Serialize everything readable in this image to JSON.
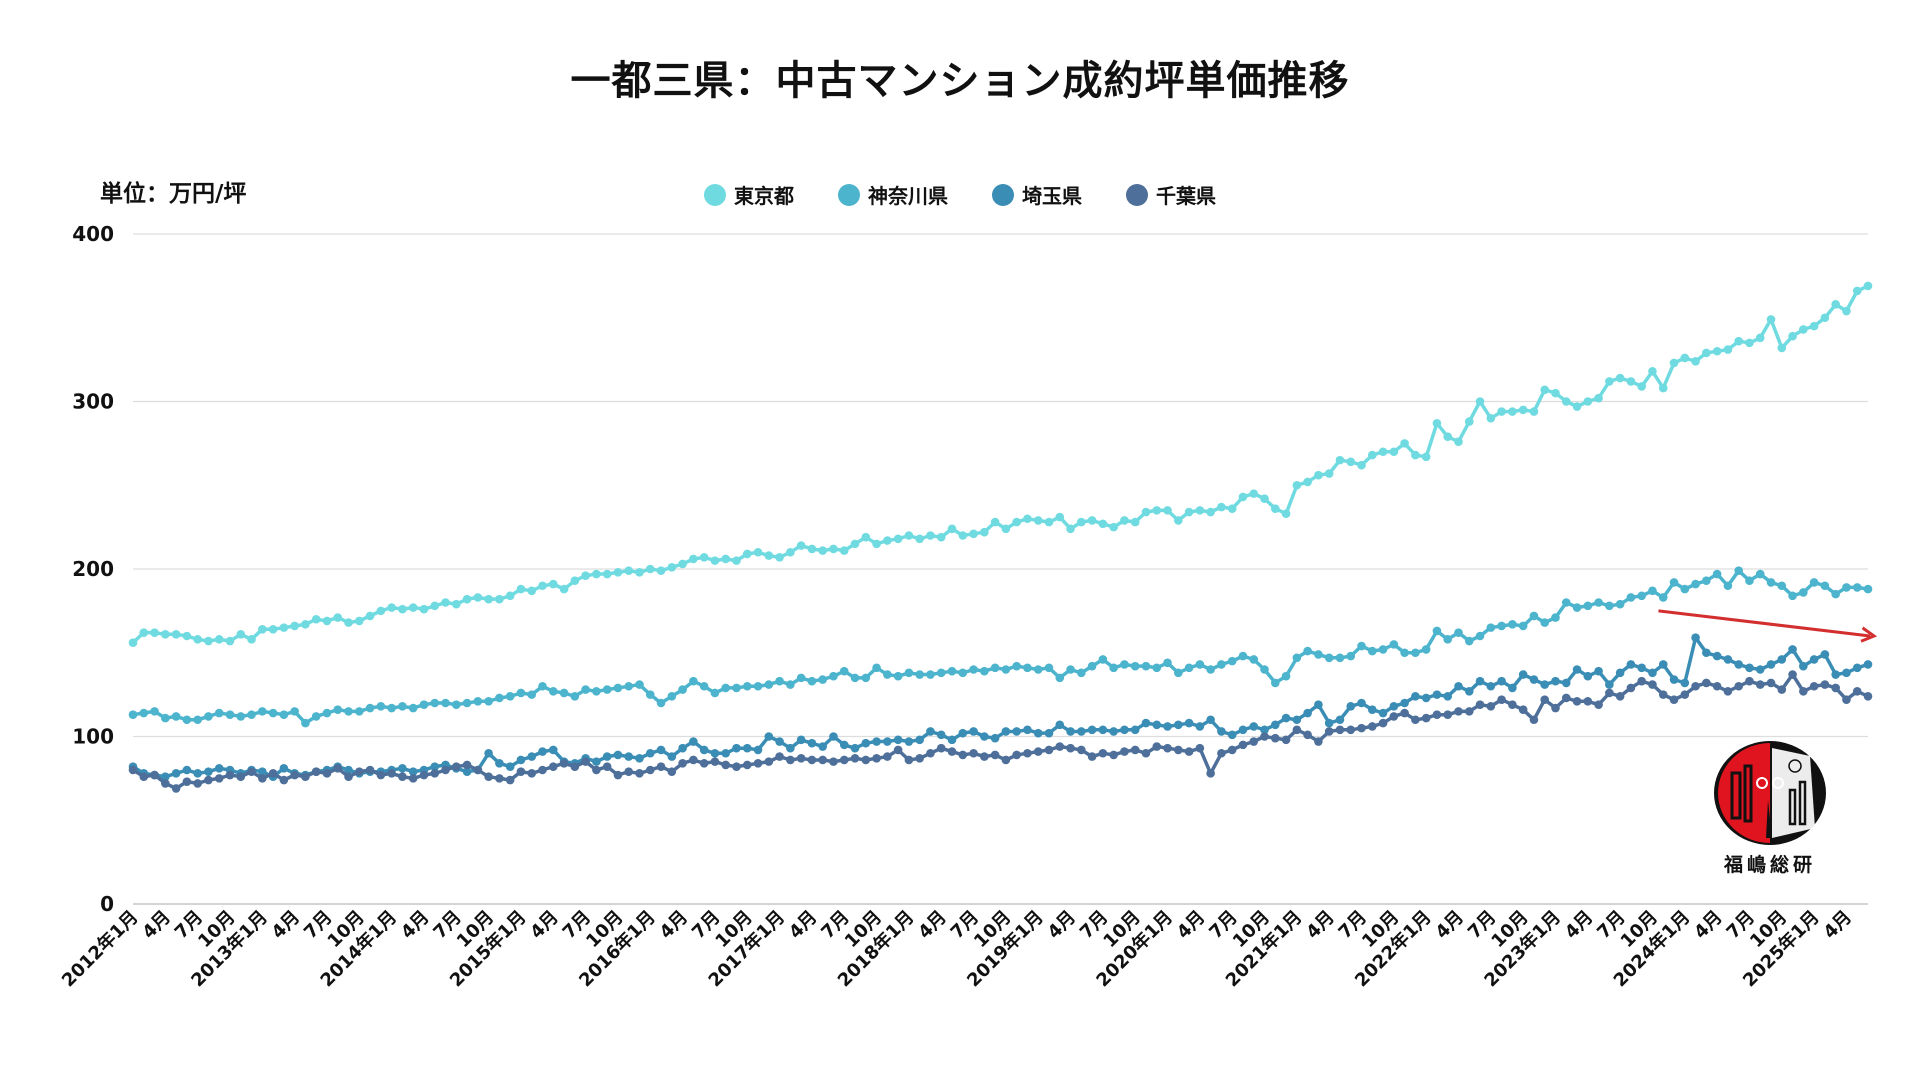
{
  "chart_data": {
    "type": "line",
    "title": "一都三県：中古マンション成約坪単価推移",
    "unit_label": "単位：万円/坪",
    "x_range": [
      "2012年1月",
      "2025年6月"
    ],
    "x_frequency": "monthly",
    "ylim": [
      0,
      400
    ],
    "y_ticks": [
      "0",
      "100",
      "200",
      "300",
      "400"
    ],
    "grid": "horizontal",
    "legend_position": "top",
    "x_tick_labels": [
      "2012年1月",
      "4月",
      "7月",
      "10月",
      "2013年1月",
      "4月",
      "7月",
      "10月",
      "2014年1月",
      "4月",
      "7月",
      "10月",
      "2015年1月",
      "4月",
      "7月",
      "10月",
      "2016年1月",
      "4月",
      "7月",
      "10月",
      "2017年1月",
      "4月",
      "7月",
      "10月",
      "2018年1月",
      "4月",
      "7月",
      "10月",
      "2019年1月",
      "4月",
      "7月",
      "10月",
      "2020年1月",
      "4月",
      "7月",
      "10月",
      "2021年1月",
      "4月",
      "7月",
      "10月",
      "2022年1月",
      "4月",
      "7月",
      "10月",
      "2023年1月",
      "4月",
      "7月",
      "10月",
      "2024年1月",
      "4月",
      "7月",
      "10月",
      "2025年1月",
      "4月"
    ],
    "series": [
      {
        "name": "東京都",
        "color": "#6fdbe0",
        "values": [
          156,
          162,
          162,
          161,
          161,
          160,
          158,
          157,
          158,
          157,
          161,
          158,
          164,
          164,
          165,
          166,
          167,
          170,
          169,
          171,
          168,
          169,
          172,
          175,
          177,
          176,
          177,
          176,
          178,
          180,
          179,
          182,
          183,
          182,
          182,
          184,
          188,
          187,
          190,
          191,
          188,
          193,
          196,
          197,
          197,
          198,
          199,
          198,
          200,
          199,
          201,
          203,
          206,
          207,
          205,
          206,
          205,
          209,
          210,
          208,
          207,
          210,
          214,
          212,
          211,
          212,
          211,
          215,
          219,
          215,
          217,
          218,
          220,
          218,
          220,
          219,
          224,
          220,
          221,
          222,
          228,
          224,
          228,
          230,
          229,
          228,
          231,
          224,
          228,
          229,
          227,
          225,
          229,
          228,
          234,
          235,
          235,
          229,
          234,
          235,
          234,
          237,
          236,
          243,
          245,
          242,
          236,
          233,
          250,
          252,
          256,
          257,
          265,
          264,
          262,
          268,
          270,
          270,
          275,
          268,
          267,
          287,
          279,
          276,
          288,
          300,
          290,
          294,
          294,
          295,
          294,
          307,
          305,
          300,
          297,
          300,
          302,
          312,
          314,
          312,
          309,
          318,
          308,
          323,
          326,
          324,
          329,
          330,
          331,
          336,
          335,
          338,
          349,
          332,
          339,
          343,
          345,
          350,
          358,
          354,
          366,
          369
        ]
      },
      {
        "name": "神奈川県",
        "color": "#4cb4cc",
        "values": [
          113,
          114,
          115,
          111,
          112,
          110,
          110,
          112,
          114,
          113,
          112,
          113,
          115,
          114,
          113,
          115,
          108,
          112,
          114,
          116,
          115,
          115,
          117,
          118,
          117,
          118,
          117,
          119,
          120,
          120,
          119,
          120,
          121,
          121,
          123,
          124,
          126,
          125,
          130,
          127,
          126,
          124,
          128,
          127,
          128,
          129,
          130,
          131,
          125,
          120,
          124,
          128,
          133,
          130,
          126,
          129,
          129,
          130,
          130,
          131,
          133,
          131,
          135,
          133,
          134,
          136,
          139,
          135,
          135,
          141,
          137,
          136,
          138,
          137,
          137,
          138,
          139,
          138,
          140,
          139,
          141,
          140,
          142,
          141,
          140,
          141,
          135,
          140,
          138,
          142,
          146,
          141,
          143,
          142,
          142,
          141,
          144,
          138,
          141,
          143,
          140,
          143,
          145,
          148,
          146,
          140,
          132,
          136,
          147,
          151,
          149,
          147,
          147,
          148,
          154,
          151,
          152,
          155,
          150,
          150,
          152,
          163,
          158,
          162,
          157,
          160,
          165,
          166,
          167,
          166,
          172,
          168,
          171,
          180,
          177,
          178,
          180,
          178,
          179,
          183,
          184,
          187,
          183,
          192,
          188,
          191,
          193,
          197,
          190,
          199,
          193,
          197,
          192,
          190,
          184,
          186,
          192,
          190,
          185,
          189,
          189,
          188
        ]
      },
      {
        "name": "埼玉県",
        "color": "#3a8db5",
        "values": [
          82,
          78,
          77,
          76,
          78,
          80,
          78,
          79,
          81,
          80,
          78,
          80,
          79,
          76,
          81,
          78,
          77,
          79,
          80,
          82,
          80,
          78,
          79,
          79,
          80,
          81,
          79,
          80,
          82,
          83,
          81,
          79,
          80,
          90,
          84,
          82,
          86,
          88,
          91,
          92,
          85,
          84,
          87,
          85,
          88,
          89,
          88,
          87,
          90,
          92,
          88,
          93,
          97,
          92,
          90,
          90,
          93,
          93,
          92,
          100,
          97,
          93,
          98,
          96,
          94,
          100,
          95,
          93,
          96,
          97,
          97,
          98,
          97,
          98,
          103,
          101,
          98,
          102,
          103,
          100,
          99,
          103,
          103,
          104,
          102,
          102,
          107,
          103,
          103,
          104,
          104,
          103,
          104,
          104,
          108,
          107,
          106,
          107,
          108,
          106,
          110,
          103,
          101,
          104,
          106,
          104,
          107,
          111,
          110,
          114,
          119,
          108,
          110,
          118,
          120,
          116,
          114,
          118,
          120,
          124,
          123,
          125,
          124,
          130,
          127,
          133,
          130,
          133,
          129,
          137,
          134,
          131,
          133,
          132,
          140,
          136,
          139,
          131,
          138,
          143,
          141,
          138,
          143,
          134,
          132,
          159,
          150,
          148,
          146,
          143,
          141,
          140,
          143,
          146,
          152,
          142,
          146,
          149,
          137,
          138,
          141,
          143
        ]
      },
      {
        "name": "千葉県",
        "color": "#4d6f99",
        "values": [
          80,
          76,
          77,
          72,
          69,
          73,
          72,
          74,
          75,
          77,
          76,
          79,
          75,
          78,
          74,
          77,
          76,
          79,
          78,
          81,
          76,
          79,
          80,
          77,
          78,
          76,
          75,
          77,
          78,
          80,
          82,
          83,
          80,
          76,
          75,
          74,
          79,
          78,
          80,
          82,
          84,
          82,
          85,
          80,
          82,
          77,
          79,
          78,
          80,
          82,
          79,
          84,
          86,
          84,
          85,
          83,
          82,
          83,
          84,
          85,
          88,
          86,
          87,
          86,
          86,
          85,
          86,
          87,
          86,
          87,
          88,
          92,
          86,
          87,
          90,
          93,
          91,
          89,
          90,
          88,
          89,
          86,
          89,
          90,
          91,
          92,
          94,
          93,
          92,
          88,
          90,
          89,
          91,
          92,
          90,
          94,
          93,
          92,
          91,
          93,
          78,
          90,
          92,
          95,
          97,
          100,
          99,
          98,
          104,
          101,
          97,
          103,
          104,
          104,
          105,
          106,
          108,
          112,
          114,
          110,
          111,
          113,
          113,
          115,
          115,
          119,
          118,
          122,
          119,
          116,
          110,
          122,
          117,
          123,
          121,
          121,
          119,
          126,
          124,
          129,
          133,
          131,
          125,
          122,
          125,
          130,
          132,
          130,
          127,
          130,
          133,
          131,
          132,
          128,
          137,
          127,
          130,
          131,
          129,
          122,
          127,
          124
        ]
      }
    ],
    "annotation": {
      "type": "arrow",
      "color": "#d32f2f",
      "meaning": "downward trend",
      "from": [
        "2023年10月",
        175
      ],
      "to": [
        "2025年6月",
        160
      ]
    }
  },
  "logo": {
    "text": "福嶋総研",
    "colors": [
      "#e0141e",
      "#111111",
      "#ffffff"
    ]
  }
}
